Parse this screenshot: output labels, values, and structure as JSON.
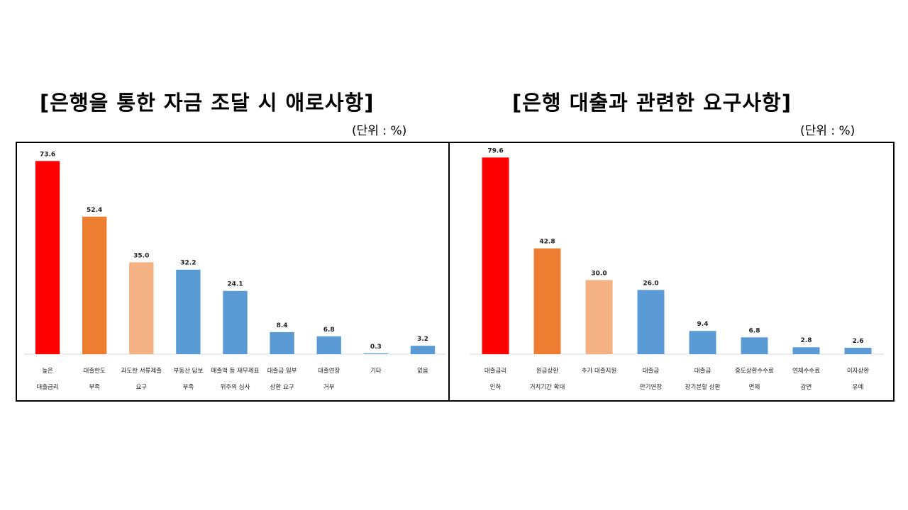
{
  "chart_data": [
    {
      "type": "bar",
      "title": "[은행을 통한 자금 조달 시 애로사항]",
      "unit": "(단위 : %)",
      "categories": [
        [
          "높은",
          "대출금리"
        ],
        [
          "대출한도",
          "부족"
        ],
        [
          "과도한 서류제출",
          "요구"
        ],
        [
          "부동산 담보",
          "부족"
        ],
        [
          "매출액 등 재무제표",
          "위주의 심사"
        ],
        [
          "대출금 일부",
          "상환 요구"
        ],
        [
          "대출연장",
          "거부"
        ],
        [
          "기타"
        ],
        [
          "없음"
        ]
      ],
      "values": [
        73.6,
        52.4,
        35.0,
        32.2,
        24.1,
        8.4,
        6.8,
        0.3,
        3.2
      ],
      "value_labels": [
        "73.6",
        "52.4",
        "35.0",
        "32.2",
        "24.1",
        "8.4",
        "6.8",
        "0.3",
        "3.2"
      ],
      "colors": [
        "#ff0000",
        "#ed7d31",
        "#f4b183",
        "#5b9bd5",
        "#5b9bd5",
        "#5b9bd5",
        "#5b9bd5",
        "#5b9bd5",
        "#5b9bd5"
      ],
      "ylim": [
        0,
        78
      ],
      "grid": false,
      "legend": "none"
    },
    {
      "type": "bar",
      "title": "[은행 대출과 관련한 요구사항]",
      "unit": "(단위 : %)",
      "categories": [
        [
          "대출금리",
          "인하"
        ],
        [
          "원금상환",
          "거치기간 확대"
        ],
        [
          "추가 대출지원"
        ],
        [
          "대출금",
          "만기연장"
        ],
        [
          "대출금",
          "장기분할 상환"
        ],
        [
          "중도상환수수료",
          "면제"
        ],
        [
          "연체수수료",
          "감면"
        ],
        [
          "이자상환",
          "유예"
        ]
      ],
      "values": [
        79.6,
        42.8,
        30.0,
        26.0,
        9.4,
        6.8,
        2.8,
        2.6
      ],
      "value_labels": [
        "79.6",
        "42.8",
        "30.0",
        "26.0",
        "9.4",
        "6.8",
        "2.8",
        "2.6"
      ],
      "colors": [
        "#ff0000",
        "#ed7d31",
        "#f4b183",
        "#5b9bd5",
        "#5b9bd5",
        "#5b9bd5",
        "#5b9bd5",
        "#5b9bd5"
      ],
      "ylim": [
        0,
        84
      ],
      "grid": false,
      "legend": "none"
    }
  ]
}
